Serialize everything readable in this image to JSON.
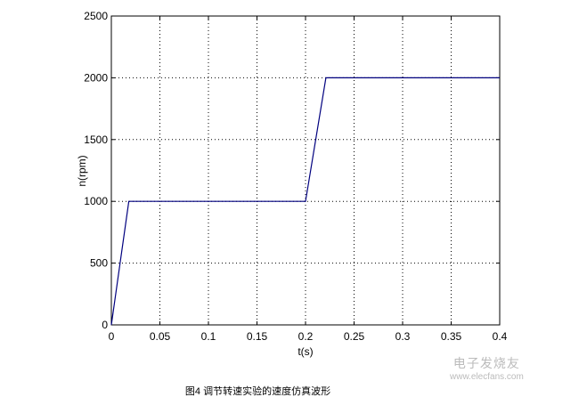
{
  "chart_data": {
    "type": "line",
    "title": "",
    "xlabel": "t(s)",
    "ylabel": "n(rpm)",
    "xlim": [
      0,
      0.4
    ],
    "ylim": [
      0,
      2500
    ],
    "xticks": [
      "0",
      "0.05",
      "0.1",
      "0.15",
      "0.2",
      "0.25",
      "0.3",
      "0.35",
      "0.4"
    ],
    "yticks": [
      "0",
      "500",
      "1000",
      "1500",
      "2000",
      "2500"
    ],
    "grid": true,
    "series": [
      {
        "color": "#00007f",
        "x": [
          0,
          0.018,
          0.2,
          0.221,
          0.4
        ],
        "y": [
          0,
          1000,
          1000,
          2000,
          2000
        ]
      }
    ]
  },
  "caption": "图4 调节转速实验的速度仿真波形",
  "watermark": {
    "brand": "电子发烧友",
    "url": "www.elecfans.com"
  }
}
